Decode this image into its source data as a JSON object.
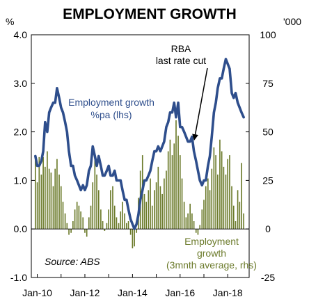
{
  "chart_data": {
    "type": "bar+line",
    "title": "EMPLOYMENT GROWTH",
    "left_axis": {
      "unit": "%",
      "ylim": [
        -1.0,
        4.0
      ],
      "ticks": [
        "4.0",
        "3.0",
        "2.0",
        "1.0",
        "0.0",
        "-1.0"
      ],
      "tick_values": [
        4,
        3,
        2,
        1,
        0,
        -1
      ]
    },
    "right_axis": {
      "unit": "'000",
      "ylim": [
        -25,
        100
      ],
      "ticks": [
        "100",
        "75",
        "50",
        "25",
        "0",
        "-25"
      ],
      "tick_values": [
        100,
        75,
        50,
        25,
        0,
        -25
      ]
    },
    "x_axis": {
      "ticks": [
        "Jan-10",
        "Jan-12",
        "Jan-14",
        "Jan-16",
        "Jan-18"
      ],
      "tick_values": [
        2010,
        2012,
        2014,
        2016,
        2018
      ],
      "xlim": [
        2009.75,
        2018.9
      ]
    },
    "grid": false,
    "colors": {
      "line": "#2e4e8c",
      "bars": "#6b7a2a",
      "label_line": "#2e4e8c",
      "label_bars": "#6b7a2a"
    },
    "annotations": {
      "line_label": [
        "Employment growth",
        "%pa (lhs)"
      ],
      "bar_label": [
        "Employment",
        "growth",
        "(3mnth average, rhs)"
      ],
      "rba_label": [
        "RBA",
        "last rate cut"
      ],
      "rba_arrow_target": {
        "x": 2016.6,
        "y": 1.85
      },
      "source": "Source: ABS"
    },
    "series": [
      {
        "name": "Employment growth %pa (lhs)",
        "axis": "left",
        "type": "line",
        "points": [
          [
            2009.92,
            1.5
          ],
          [
            2010.0,
            1.3
          ],
          [
            2010.08,
            1.3
          ],
          [
            2010.17,
            1.4
          ],
          [
            2010.25,
            1.6
          ],
          [
            2010.33,
            2.2
          ],
          [
            2010.42,
            2.0
          ],
          [
            2010.5,
            2.4
          ],
          [
            2010.58,
            2.5
          ],
          [
            2010.67,
            2.6
          ],
          [
            2010.75,
            2.6
          ],
          [
            2010.83,
            2.9
          ],
          [
            2010.92,
            2.7
          ],
          [
            2011.0,
            2.5
          ],
          [
            2011.08,
            2.4
          ],
          [
            2011.17,
            2.2
          ],
          [
            2011.25,
            2.0
          ],
          [
            2011.33,
            1.6
          ],
          [
            2011.42,
            1.3
          ],
          [
            2011.5,
            1.3
          ],
          [
            2011.58,
            1.1
          ],
          [
            2011.67,
            1.0
          ],
          [
            2011.75,
            0.9
          ],
          [
            2011.83,
            0.8
          ],
          [
            2011.92,
            0.9
          ],
          [
            2012.0,
            0.8
          ],
          [
            2012.08,
            0.9
          ],
          [
            2012.17,
            1.2
          ],
          [
            2012.25,
            1.3
          ],
          [
            2012.33,
            1.7
          ],
          [
            2012.42,
            1.5
          ],
          [
            2012.5,
            1.3
          ],
          [
            2012.58,
            1.5
          ],
          [
            2012.67,
            1.3
          ],
          [
            2012.75,
            1.1
          ],
          [
            2012.83,
            1.1
          ],
          [
            2012.92,
            1.2
          ],
          [
            2013.0,
            1.3
          ],
          [
            2013.08,
            1.1
          ],
          [
            2013.17,
            1.1
          ],
          [
            2013.25,
            1.2
          ],
          [
            2013.33,
            1.0
          ],
          [
            2013.42,
            1.0
          ],
          [
            2013.5,
            1.0
          ],
          [
            2013.58,
            0.8
          ],
          [
            2013.67,
            0.6
          ],
          [
            2013.75,
            0.6
          ],
          [
            2013.83,
            0.4
          ],
          [
            2013.92,
            0.2
          ],
          [
            2014.0,
            0.1
          ],
          [
            2014.08,
            0.0
          ],
          [
            2014.17,
            0.1
          ],
          [
            2014.25,
            0.3
          ],
          [
            2014.33,
            0.6
          ],
          [
            2014.42,
            0.8
          ],
          [
            2014.5,
            1.0
          ],
          [
            2014.58,
            1.0
          ],
          [
            2014.67,
            1.1
          ],
          [
            2014.75,
            1.2
          ],
          [
            2014.83,
            1.4
          ],
          [
            2014.92,
            1.6
          ],
          [
            2015.0,
            1.6
          ],
          [
            2015.08,
            1.7
          ],
          [
            2015.17,
            1.6
          ],
          [
            2015.25,
            1.7
          ],
          [
            2015.33,
            1.8
          ],
          [
            2015.42,
            2.1
          ],
          [
            2015.5,
            2.2
          ],
          [
            2015.58,
            2.4
          ],
          [
            2015.67,
            2.4
          ],
          [
            2015.75,
            2.6
          ],
          [
            2015.83,
            2.3
          ],
          [
            2015.92,
            2.6
          ],
          [
            2016.0,
            2.1
          ],
          [
            2016.08,
            2.1
          ],
          [
            2016.17,
            2.0
          ],
          [
            2016.25,
            1.9
          ],
          [
            2016.33,
            1.8
          ],
          [
            2016.42,
            1.8
          ],
          [
            2016.5,
            1.9
          ],
          [
            2016.58,
            1.6
          ],
          [
            2016.67,
            1.4
          ],
          [
            2016.75,
            1.2
          ],
          [
            2016.83,
            1.0
          ],
          [
            2016.92,
            0.9
          ],
          [
            2017.0,
            1.0
          ],
          [
            2017.08,
            1.0
          ],
          [
            2017.17,
            1.3
          ],
          [
            2017.25,
            1.5
          ],
          [
            2017.33,
            1.9
          ],
          [
            2017.42,
            2.4
          ],
          [
            2017.5,
            2.6
          ],
          [
            2017.58,
            2.9
          ],
          [
            2017.67,
            3.1
          ],
          [
            2017.75,
            3.1
          ],
          [
            2017.83,
            3.3
          ],
          [
            2017.92,
            3.5
          ],
          [
            2018.0,
            3.4
          ],
          [
            2018.08,
            3.3
          ],
          [
            2018.17,
            2.8
          ],
          [
            2018.25,
            2.7
          ],
          [
            2018.33,
            2.8
          ],
          [
            2018.42,
            2.6
          ],
          [
            2018.5,
            2.5
          ],
          [
            2018.58,
            2.4
          ],
          [
            2018.67,
            2.3
          ]
        ]
      },
      {
        "name": "Employment growth (3mnth average, rhs)",
        "axis": "right",
        "type": "bar",
        "points": [
          [
            2009.92,
            38
          ],
          [
            2010.0,
            24
          ],
          [
            2010.08,
            37
          ],
          [
            2010.17,
            28
          ],
          [
            2010.25,
            37
          ],
          [
            2010.33,
            32
          ],
          [
            2010.42,
            40
          ],
          [
            2010.5,
            31
          ],
          [
            2010.58,
            29
          ],
          [
            2010.67,
            22
          ],
          [
            2010.75,
            31
          ],
          [
            2010.83,
            36
          ],
          [
            2010.92,
            28
          ],
          [
            2011.0,
            22
          ],
          [
            2011.08,
            14
          ],
          [
            2011.17,
            8
          ],
          [
            2011.25,
            3
          ],
          [
            2011.33,
            -3
          ],
          [
            2011.42,
            -2
          ],
          [
            2011.5,
            4
          ],
          [
            2011.58,
            10
          ],
          [
            2011.67,
            14
          ],
          [
            2011.75,
            12
          ],
          [
            2011.83,
            9
          ],
          [
            2011.92,
            6
          ],
          [
            2012.0,
            -2
          ],
          [
            2012.08,
            -4
          ],
          [
            2012.17,
            6
          ],
          [
            2012.25,
            12
          ],
          [
            2012.33,
            24
          ],
          [
            2012.42,
            36
          ],
          [
            2012.5,
            28
          ],
          [
            2012.58,
            20
          ],
          [
            2012.67,
            10
          ],
          [
            2012.75,
            4
          ],
          [
            2012.83,
            -1
          ],
          [
            2012.92,
            3
          ],
          [
            2013.0,
            10
          ],
          [
            2013.08,
            20
          ],
          [
            2013.17,
            22
          ],
          [
            2013.25,
            12
          ],
          [
            2013.33,
            6
          ],
          [
            2013.42,
            3
          ],
          [
            2013.5,
            9
          ],
          [
            2013.58,
            14
          ],
          [
            2013.67,
            8
          ],
          [
            2013.75,
            3
          ],
          [
            2013.83,
            4
          ],
          [
            2013.92,
            -3
          ],
          [
            2014.0,
            -10
          ],
          [
            2014.08,
            -9
          ],
          [
            2014.17,
            -2
          ],
          [
            2014.25,
            16
          ],
          [
            2014.33,
            30
          ],
          [
            2014.42,
            38
          ],
          [
            2014.5,
            18
          ],
          [
            2014.58,
            14
          ],
          [
            2014.67,
            20
          ],
          [
            2014.75,
            26
          ],
          [
            2014.83,
            12
          ],
          [
            2014.92,
            20
          ],
          [
            2015.0,
            24
          ],
          [
            2015.08,
            32
          ],
          [
            2015.17,
            22
          ],
          [
            2015.25,
            18
          ],
          [
            2015.33,
            26
          ],
          [
            2015.42,
            30
          ],
          [
            2015.5,
            40
          ],
          [
            2015.58,
            46
          ],
          [
            2015.67,
            38
          ],
          [
            2015.75,
            44
          ],
          [
            2015.83,
            56
          ],
          [
            2015.92,
            48
          ],
          [
            2016.0,
            38
          ],
          [
            2016.08,
            26
          ],
          [
            2016.17,
            14
          ],
          [
            2016.25,
            6
          ],
          [
            2016.33,
            8
          ],
          [
            2016.42,
            13
          ],
          [
            2016.5,
            8
          ],
          [
            2016.58,
            4
          ],
          [
            2016.67,
            -2
          ],
          [
            2016.75,
            -3
          ],
          [
            2016.83,
            2
          ],
          [
            2016.92,
            10
          ],
          [
            2017.0,
            15
          ],
          [
            2017.08,
            22
          ],
          [
            2017.17,
            26
          ],
          [
            2017.25,
            20
          ],
          [
            2017.33,
            31
          ],
          [
            2017.42,
            42
          ],
          [
            2017.5,
            38
          ],
          [
            2017.58,
            28
          ],
          [
            2017.67,
            46
          ],
          [
            2017.75,
            40
          ],
          [
            2017.83,
            32
          ],
          [
            2017.92,
            28
          ],
          [
            2018.0,
            36
          ],
          [
            2018.08,
            38
          ],
          [
            2018.17,
            22
          ],
          [
            2018.25,
            12
          ],
          [
            2018.33,
            4
          ],
          [
            2018.42,
            20
          ],
          [
            2018.5,
            14
          ],
          [
            2018.58,
            34
          ],
          [
            2018.67,
            8
          ]
        ]
      }
    ]
  }
}
